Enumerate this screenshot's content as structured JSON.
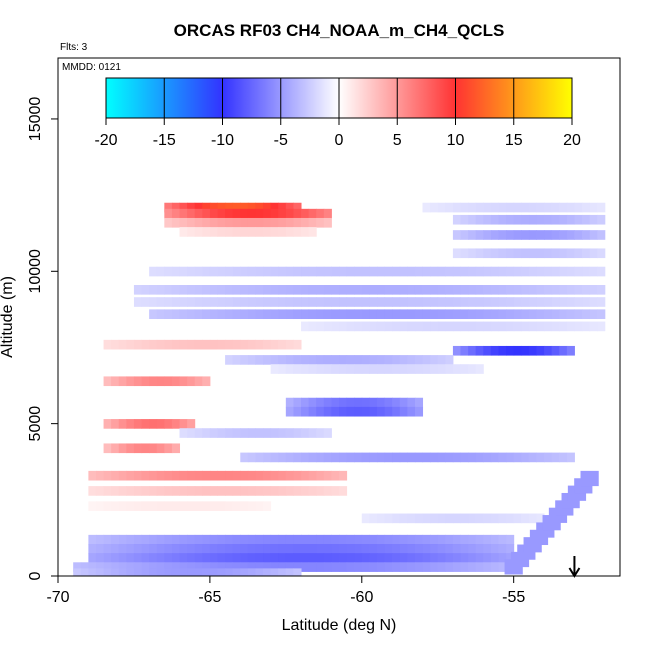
{
  "chart_data": {
    "type": "heatmap",
    "title": "ORCAS RF03 CH4_NOAA_m_CH4_QCLS",
    "xlabel": "Latitude (deg N)",
    "ylabel": "Altitude (m)",
    "flights_label": "Flts: 3",
    "date_label": "MMDD: 0121",
    "xlim": [
      -70,
      -51.5
    ],
    "ylim": [
      0,
      17000
    ],
    "x_ticks": [
      "-70",
      "-65",
      "-60",
      "-55"
    ],
    "x_tick_values": [
      -70,
      -65,
      -60,
      -55
    ],
    "y_ticks": [
      "0",
      "5000",
      "10000",
      "15000"
    ],
    "y_tick_values": [
      0,
      5000,
      10000,
      15000
    ],
    "colorbar": {
      "range": [
        -20,
        20
      ],
      "ticks": [
        "-20",
        "-15",
        "-10",
        "-5",
        "0",
        "5",
        "10",
        "15",
        "20"
      ],
      "tick_values": [
        -20,
        -15,
        -10,
        -5,
        0,
        5,
        10,
        15,
        20
      ],
      "colors": [
        "#00ffff",
        "#3333ff",
        "#ffffff",
        "#ff3333",
        "#ffff00"
      ]
    },
    "arrow_latitude": -53,
    "bands": [
      {
        "alt": 12100,
        "x0": -66.5,
        "x1": -62.0,
        "value": 12
      },
      {
        "alt": 11900,
        "x0": -66.5,
        "x1": -61.0,
        "value": 10
      },
      {
        "alt": 11600,
        "x0": -66.5,
        "x1": -61.0,
        "value": 5
      },
      {
        "alt": 11300,
        "x0": -66.0,
        "x1": -61.5,
        "value": 2
      },
      {
        "alt": 12100,
        "x0": -58.0,
        "x1": -52.0,
        "value": -2
      },
      {
        "alt": 11700,
        "x0": -57.0,
        "x1": -52.0,
        "value": -4
      },
      {
        "alt": 11200,
        "x0": -57.0,
        "x1": -52.0,
        "value": -5
      },
      {
        "alt": 10600,
        "x0": -57.0,
        "x1": -52.0,
        "value": -3
      },
      {
        "alt": 10000,
        "x0": -67.0,
        "x1": -52.0,
        "value": -3
      },
      {
        "alt": 9400,
        "x0": -67.5,
        "x1": -52.0,
        "value": -4
      },
      {
        "alt": 9000,
        "x0": -67.5,
        "x1": -52.0,
        "value": -3
      },
      {
        "alt": 8600,
        "x0": -67.0,
        "x1": -52.0,
        "value": -5
      },
      {
        "alt": 8200,
        "x0": -62.0,
        "x1": -52.0,
        "value": -2
      },
      {
        "alt": 7600,
        "x0": -68.5,
        "x1": -62.0,
        "value": 3
      },
      {
        "alt": 7400,
        "x0": -57.0,
        "x1": -53.0,
        "value": -10
      },
      {
        "alt": 7100,
        "x0": -64.5,
        "x1": -57.0,
        "value": -4
      },
      {
        "alt": 6800,
        "x0": -63.0,
        "x1": -56.0,
        "value": -2
      },
      {
        "alt": 6400,
        "x0": -68.5,
        "x1": -65.0,
        "value": 6
      },
      {
        "alt": 5700,
        "x0": -62.5,
        "x1": -58.0,
        "value": -7
      },
      {
        "alt": 5400,
        "x0": -62.5,
        "x1": -58.0,
        "value": -8
      },
      {
        "alt": 5000,
        "x0": -68.5,
        "x1": -65.5,
        "value": 7
      },
      {
        "alt": 4700,
        "x0": -66.0,
        "x1": -61.0,
        "value": -3
      },
      {
        "alt": 4200,
        "x0": -68.5,
        "x1": -66.0,
        "value": 6
      },
      {
        "alt": 3900,
        "x0": -64.0,
        "x1": -53.0,
        "value": -5
      },
      {
        "alt": 3300,
        "x0": -69.0,
        "x1": -60.5,
        "value": 6
      },
      {
        "alt": 2800,
        "x0": -69.0,
        "x1": -60.5,
        "value": 3
      },
      {
        "alt": 2300,
        "x0": -69.0,
        "x1": -63.0,
        "value": 1
      },
      {
        "alt": 1900,
        "x0": -60.0,
        "x1": -54.0,
        "value": -2
      },
      {
        "alt": 1200,
        "x0": -69.0,
        "x1": -55.0,
        "value": -6
      },
      {
        "alt": 900,
        "x0": -69.0,
        "x1": -55.0,
        "value": -7
      },
      {
        "alt": 600,
        "x0": -69.0,
        "x1": -55.0,
        "value": -8
      },
      {
        "alt": 300,
        "x0": -69.5,
        "x1": -55.0,
        "value": -6
      },
      {
        "alt": 100,
        "x0": -69.5,
        "x1": -62.0,
        "value": -5
      }
    ],
    "diagonal_band": {
      "from": [
        -55.0,
        300
      ],
      "to": [
        -52.5,
        3200
      ],
      "value": -5
    }
  }
}
